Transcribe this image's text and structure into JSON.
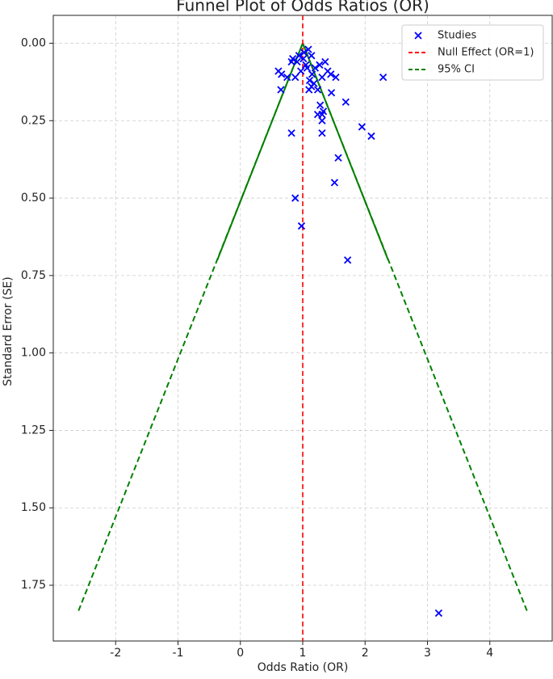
{
  "chart_data": {
    "type": "scatter",
    "title": "Funnel Plot of Odds Ratios (OR)",
    "x_label": "Odds Ratio (OR)",
    "y_label": "Standard Error (SE)",
    "xlim": [
      -3,
      5
    ],
    "ylim": [
      -0.09,
      1.93
    ],
    "y_inverted": true,
    "xticks": [
      -2,
      -1,
      0,
      1,
      2,
      3,
      4
    ],
    "yticks": [
      {
        "value": 0,
        "label": "0.00"
      },
      {
        "value": 0.25,
        "label": "0.25"
      },
      {
        "value": 0.5,
        "label": "0.50"
      },
      {
        "value": 0.75,
        "label": "0.75"
      },
      {
        "value": 1,
        "label": "1.00"
      },
      {
        "value": 1.25,
        "label": "1.25"
      },
      {
        "value": 1.5,
        "label": "1.50"
      },
      {
        "value": 1.75,
        "label": "1.75"
      }
    ],
    "grid": true,
    "legend": "upper right",
    "series": [
      {
        "name": "Studies",
        "color": "#0000ff",
        "x": [
          2.29,
          3.18,
          1.72,
          0.98,
          0.88,
          1.51,
          1.57,
          1.31,
          0.82,
          2.1,
          1.95,
          1.69,
          1.31,
          1.31,
          1.24,
          1.33,
          1.28,
          1.46,
          0.65,
          0.61,
          0.66,
          0.75,
          0.88,
          0.84,
          0.82,
          0.91,
          0.94,
          1.01,
          1.05,
          1.07,
          1.11,
          1.14,
          1.18,
          1.1,
          1.24,
          1.31,
          1.36,
          1.4,
          1.45,
          1.53,
          1.2,
          1.27,
          1.14,
          1.09,
          1.02,
          0.97,
          1.15
        ],
        "values": [
          0.11,
          1.84,
          0.7,
          0.59,
          0.5,
          0.45,
          0.37,
          0.29,
          0.29,
          0.3,
          0.27,
          0.19,
          0.25,
          0.23,
          0.23,
          0.22,
          0.2,
          0.16,
          0.15,
          0.09,
          0.1,
          0.11,
          0.11,
          0.05,
          0.06,
          0.06,
          0.04,
          0.05,
          0.07,
          0.08,
          0.12,
          0.14,
          0.13,
          0.15,
          0.15,
          0.11,
          0.06,
          0.09,
          0.1,
          0.11,
          0.08,
          0.07,
          0.04,
          0.02,
          0.03,
          0.09,
          0.1
        ]
      }
    ],
    "null_line": {
      "name": "Null Effect (OR=1)",
      "color": "#ff0000",
      "x": 1
    },
    "ci": {
      "name": "95% CI",
      "color": "#008000",
      "se": [
        0,
        1.84
      ],
      "lower": [
        1,
        -2.61
      ],
      "upper": [
        1,
        4.61
      ]
    },
    "ci_solid": {
      "color": "#008000",
      "se": [
        0,
        0.7
      ],
      "lower": [
        1,
        -0.37
      ],
      "upper": [
        1,
        2.37
      ]
    }
  }
}
